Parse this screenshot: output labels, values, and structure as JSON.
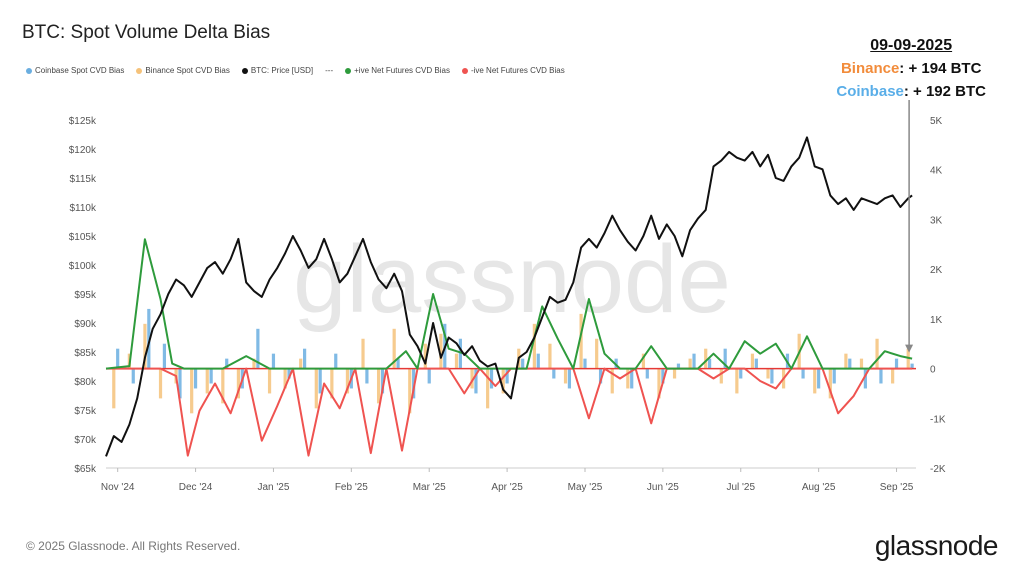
{
  "header": {
    "title": "BTC: Spot Volume Delta Bias"
  },
  "legend": [
    {
      "label": "Coinbase Spot CVD Bias",
      "color": "#6aaee0",
      "kind": "dot"
    },
    {
      "label": "Binance Spot CVD Bias",
      "color": "#f5c27a",
      "kind": "dot"
    },
    {
      "label": "BTC: Price [USD]",
      "color": "#111111",
      "kind": "dot"
    },
    {
      "label": "---",
      "color": "#777777",
      "kind": "text"
    },
    {
      "label": "+ive Net Futures CVD Bias",
      "color": "#2e9b3c",
      "kind": "dot"
    },
    {
      "label": "-ive Net Futures CVD Bias",
      "color": "#ef5350",
      "kind": "dot"
    }
  ],
  "callout": {
    "date": "09-09-2025",
    "binance_label": "Binance",
    "binance_value": ": + 194 BTC",
    "coinbase_label": "Coinbase",
    "coinbase_value": ": + 192 BTC"
  },
  "footer": {
    "copyright": "© 2025 Glassnode. All Rights Reserved.",
    "brand": "glassnode"
  },
  "watermark": "glassnode",
  "colors": {
    "coinbase": "#6aaee0",
    "binance": "#f5c27a",
    "price": "#111111",
    "pos_futures": "#2e9b3c",
    "neg_futures": "#ef5350",
    "zero_line": "#e53935"
  },
  "chart_data": {
    "type": "line",
    "title": "BTC: Spot Volume Delta Bias",
    "x_tick_labels": [
      "Nov '24",
      "Dec '24",
      "Jan '25",
      "Feb '25",
      "Mar '25",
      "Apr '25",
      "May '25",
      "Jun '25",
      "Jul '25",
      "Aug '25",
      "Sep '25"
    ],
    "y_left_ticks": [
      "$65k",
      "$70k",
      "$75k",
      "$80k",
      "$85k",
      "$90k",
      "$95k",
      "$100k",
      "$105k",
      "$110k",
      "$115k",
      "$120k",
      "$125k"
    ],
    "y_left_range": [
      65000,
      125000
    ],
    "y_right_ticks": [
      "-2K",
      "-1K",
      "0",
      "1K",
      "2K",
      "3K",
      "4K",
      "5K"
    ],
    "y_right_range": [
      -2000,
      5000
    ],
    "x_range": [
      0,
      10.4
    ],
    "price": {
      "name": "BTC: Price [USD]",
      "x": [
        0,
        0.1,
        0.2,
        0.3,
        0.4,
        0.5,
        0.6,
        0.7,
        0.8,
        0.9,
        1.0,
        1.1,
        1.2,
        1.3,
        1.4,
        1.5,
        1.6,
        1.7,
        1.8,
        1.9,
        2.0,
        2.1,
        2.2,
        2.3,
        2.4,
        2.5,
        2.6,
        2.7,
        2.8,
        2.9,
        3.0,
        3.1,
        3.2,
        3.3,
        3.4,
        3.5,
        3.6,
        3.7,
        3.8,
        3.9,
        4.0,
        4.1,
        4.2,
        4.3,
        4.4,
        4.5,
        4.6,
        4.7,
        4.8,
        4.9,
        5.0,
        5.1,
        5.2,
        5.3,
        5.4,
        5.5,
        5.6,
        5.7,
        5.8,
        5.9,
        6.0,
        6.1,
        6.2,
        6.3,
        6.4,
        6.5,
        6.6,
        6.7,
        6.8,
        6.9,
        7.0,
        7.1,
        7.2,
        7.3,
        7.4,
        7.5,
        7.6,
        7.7,
        7.8,
        7.9,
        8.0,
        8.1,
        8.2,
        8.3,
        8.4,
        8.5,
        8.6,
        8.7,
        8.8,
        8.9,
        9.0,
        9.1,
        9.2,
        9.3,
        9.4,
        9.5,
        9.6,
        9.7,
        9.8,
        9.9,
        10.0,
        10.1,
        10.2,
        10.3,
        10.35
      ],
      "y": [
        67000,
        70500,
        69500,
        72500,
        77000,
        84000,
        89000,
        91500,
        95000,
        97500,
        96500,
        94500,
        97000,
        99500,
        100500,
        98500,
        101000,
        104500,
        97000,
        95500,
        94500,
        97500,
        99500,
        102000,
        105000,
        102500,
        99500,
        101000,
        104500,
        101000,
        97000,
        98500,
        101500,
        104500,
        100500,
        97500,
        96000,
        98500,
        95500,
        88000,
        86000,
        83000,
        90000,
        84000,
        87500,
        86500,
        84500,
        86000,
        83500,
        82500,
        83000,
        78500,
        77000,
        84000,
        85000,
        87500,
        91000,
        94500,
        93500,
        94000,
        97000,
        103000,
        104500,
        103000,
        105500,
        108500,
        106000,
        104000,
        102500,
        105000,
        108500,
        104500,
        107000,
        105000,
        101500,
        106000,
        108000,
        109500,
        117000,
        118000,
        119500,
        118500,
        118000,
        119500,
        117000,
        119000,
        115000,
        114500,
        117000,
        118500,
        122000,
        117000,
        116500,
        112000,
        110500,
        111500,
        109500,
        111500,
        111000,
        110500,
        111500,
        112000,
        110000,
        111500,
        112000
      ]
    },
    "pos_futures": {
      "name": "+ive Net Futures CVD Bias",
      "x": [
        0,
        0.3,
        0.5,
        0.7,
        0.85,
        1.0,
        1.2,
        1.5,
        1.8,
        2.1,
        2.4,
        2.7,
        3.0,
        3.3,
        3.6,
        3.85,
        4.0,
        4.2,
        4.4,
        4.6,
        4.8,
        5.0,
        5.2,
        5.4,
        5.6,
        5.8,
        6.0,
        6.2,
        6.4,
        6.6,
        6.8,
        7.0,
        7.2,
        7.4,
        7.6,
        7.8,
        8.0,
        8.2,
        8.4,
        8.6,
        8.8,
        9.0,
        9.2,
        9.4,
        9.6,
        9.8,
        10.0,
        10.2,
        10.35
      ],
      "y": [
        0,
        50,
        2600,
        1400,
        100,
        0,
        0,
        0,
        250,
        0,
        0,
        0,
        0,
        0,
        0,
        350,
        0,
        1500,
        400,
        300,
        0,
        0,
        0,
        0,
        1250,
        600,
        0,
        1400,
        300,
        0,
        0,
        450,
        0,
        0,
        0,
        300,
        0,
        550,
        300,
        500,
        0,
        650,
        0,
        0,
        0,
        0,
        350,
        250,
        200
      ]
    },
    "neg_futures": {
      "name": "-ive Net Futures CVD Bias",
      "x": [
        0,
        0.3,
        0.5,
        0.7,
        0.9,
        1.05,
        1.2,
        1.4,
        1.6,
        1.8,
        2.0,
        2.2,
        2.4,
        2.6,
        2.8,
        3.0,
        3.2,
        3.4,
        3.6,
        3.8,
        4.0,
        4.2,
        4.4,
        4.6,
        4.8,
        5.0,
        5.2,
        5.4,
        5.6,
        5.8,
        6.0,
        6.2,
        6.4,
        6.6,
        6.8,
        7.0,
        7.2,
        7.4,
        7.6,
        7.8,
        8.0,
        8.2,
        8.4,
        8.6,
        8.8,
        9.0,
        9.2,
        9.4,
        9.6,
        9.8,
        10.0,
        10.2,
        10.35
      ],
      "y": [
        0,
        0,
        0,
        0,
        -150,
        -1750,
        -850,
        -300,
        -900,
        0,
        -1450,
        -750,
        0,
        -1750,
        -300,
        -800,
        0,
        -1700,
        0,
        -1650,
        0,
        0,
        0,
        -500,
        0,
        -350,
        0,
        0,
        0,
        0,
        0,
        -1000,
        0,
        -200,
        0,
        -1100,
        0,
        0,
        0,
        -200,
        0,
        0,
        -250,
        -400,
        0,
        0,
        0,
        -900,
        -550,
        0,
        0,
        0,
        0
      ]
    },
    "binance_bars": {
      "name": "Binance Spot CVD Bias",
      "x": [
        0.1,
        0.3,
        0.5,
        0.7,
        0.9,
        1.1,
        1.3,
        1.5,
        1.7,
        1.9,
        2.1,
        2.3,
        2.5,
        2.7,
        2.9,
        3.1,
        3.3,
        3.5,
        3.7,
        3.9,
        4.1,
        4.3,
        4.5,
        4.7,
        4.9,
        5.1,
        5.3,
        5.5,
        5.7,
        5.9,
        6.1,
        6.3,
        6.5,
        6.7,
        6.9,
        7.1,
        7.3,
        7.5,
        7.7,
        7.9,
        8.1,
        8.3,
        8.5,
        8.7,
        8.9,
        9.1,
        9.3,
        9.5,
        9.7,
        9.9,
        10.1,
        10.3
      ],
      "y": [
        -800,
        300,
        900,
        -600,
        -300,
        -900,
        -500,
        -700,
        -600,
        200,
        -500,
        -400,
        200,
        -800,
        -600,
        -500,
        600,
        -700,
        800,
        -900,
        500,
        700,
        300,
        -400,
        -800,
        -500,
        400,
        900,
        500,
        -300,
        1100,
        600,
        -500,
        -400,
        300,
        -600,
        -200,
        200,
        400,
        -300,
        -500,
        300,
        -200,
        -400,
        700,
        -500,
        -600,
        300,
        200,
        600,
        -300,
        400
      ]
    },
    "coinbase_bars": {
      "name": "Coinbase Spot CVD Bias",
      "x": [
        0.15,
        0.35,
        0.55,
        0.75,
        0.95,
        1.15,
        1.35,
        1.55,
        1.75,
        1.95,
        2.15,
        2.35,
        2.55,
        2.75,
        2.95,
        3.15,
        3.35,
        3.55,
        3.75,
        3.95,
        4.15,
        4.35,
        4.55,
        4.75,
        4.95,
        5.15,
        5.35,
        5.55,
        5.75,
        5.95,
        6.15,
        6.35,
        6.55,
        6.75,
        6.95,
        7.15,
        7.35,
        7.55,
        7.75,
        7.95,
        8.15,
        8.35,
        8.55,
        8.75,
        8.95,
        9.15,
        9.35,
        9.55,
        9.75,
        9.95,
        10.15,
        10.35
      ],
      "y": [
        400,
        -300,
        1200,
        500,
        -600,
        -400,
        -300,
        200,
        -400,
        800,
        300,
        -200,
        400,
        -500,
        300,
        -400,
        -300,
        -500,
        200,
        -600,
        -300,
        900,
        600,
        -500,
        -400,
        -300,
        200,
        300,
        -200,
        -400,
        200,
        -300,
        200,
        -400,
        -200,
        -300,
        100,
        300,
        200,
        400,
        -200,
        200,
        -300,
        300,
        -200,
        -400,
        -300,
        200,
        -400,
        -300,
        200,
        100
      ]
    }
  }
}
